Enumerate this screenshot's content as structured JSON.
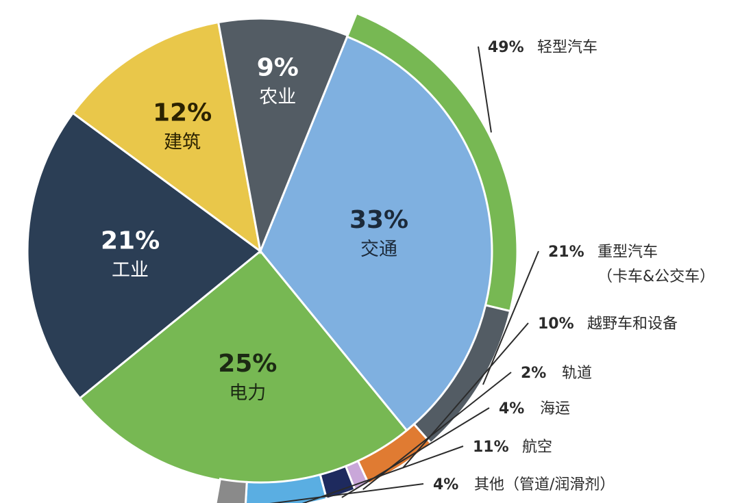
{
  "chart_data": {
    "type": "pie",
    "title": "",
    "slices": [
      {
        "name": "交通",
        "pct_label": "33%",
        "value": 33,
        "color": "#7fb0e0",
        "text_color": "#1c2a3a"
      },
      {
        "name": "电力",
        "pct_label": "25%",
        "value": 25,
        "color": "#77b853",
        "text_color": "#1c2a14"
      },
      {
        "name": "工业",
        "pct_label": "21%",
        "value": 21,
        "color": "#2b3e55",
        "text_color": "#ffffff"
      },
      {
        "name": "建筑",
        "pct_label": "12%",
        "value": 12,
        "color": "#e9c74a",
        "text_color": "#2b2200"
      },
      {
        "name": "农业",
        "pct_label": "9%",
        "value": 9,
        "color": "#535c64",
        "text_color": "#ffffff"
      }
    ],
    "breakdown": {
      "parent": "交通",
      "segments": [
        {
          "name": "轻型汽车",
          "pct_label": "49%",
          "value": 49,
          "color": "#77b853"
        },
        {
          "name": "重型汽车",
          "name_line2": "（卡车&公交车）",
          "pct_label": "21%",
          "value": 21,
          "color": "#535c64"
        },
        {
          "name": "越野车和设备",
          "pct_label": "10%",
          "value": 10,
          "color": "#e07b32"
        },
        {
          "name": "轨道",
          "pct_label": "2%",
          "value": 2,
          "color": "#c9a7d9"
        },
        {
          "name": "海运",
          "pct_label": "4%",
          "value": 4,
          "color": "#1e2a5e"
        },
        {
          "name": "航空",
          "pct_label": "11%",
          "value": 11,
          "color": "#5aaee2"
        },
        {
          "name": "其他（管道/润滑剂）",
          "pct_label": "4%",
          "value": 4,
          "color": "#8a8a8a"
        }
      ]
    }
  }
}
